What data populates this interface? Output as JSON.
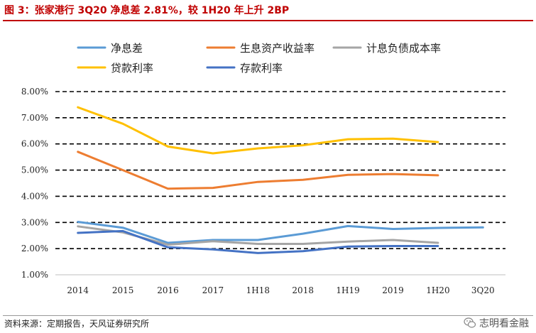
{
  "header": {
    "title": "图 3：张家港行 3Q20 净息差 2.81%，较 1H20 年上升 2BP"
  },
  "footer": {
    "source": "资料来源：定期报告，天风证券研究所",
    "watermark": "志明看金融"
  },
  "chart_data": {
    "type": "line",
    "title": "图 3：张家港行 3Q20 净息差 2.81%，较 1H20 年上升 2BP",
    "categories": [
      "2014",
      "2015",
      "2016",
      "2017",
      "1H18",
      "2018",
      "1H19",
      "2019",
      "1H20",
      "3Q20"
    ],
    "yticks": [
      "1.00%",
      "2.00%",
      "3.00%",
      "4.00%",
      "5.00%",
      "6.00%",
      "7.00%",
      "8.00%"
    ],
    "ylim": [
      1.0,
      8.0
    ],
    "grid": "horizontal dashed",
    "legend_position": "top",
    "series": [
      {
        "name": "净息差",
        "color": "#5b9bd5",
        "values": [
          3.02,
          2.8,
          2.22,
          2.33,
          2.33,
          2.57,
          2.86,
          2.75,
          2.79,
          2.81
        ]
      },
      {
        "name": "生息资产收益率",
        "color": "#ed7d31",
        "values": [
          5.7,
          5.0,
          4.29,
          4.32,
          4.55,
          4.63,
          4.82,
          4.85,
          4.8,
          null
        ]
      },
      {
        "name": "计息负债成本率",
        "color": "#a5a5a5",
        "values": [
          2.85,
          2.62,
          2.15,
          2.28,
          2.18,
          2.18,
          2.27,
          2.33,
          2.22,
          null
        ]
      },
      {
        "name": "贷款利率",
        "color": "#ffc000",
        "values": [
          7.4,
          6.77,
          5.9,
          5.64,
          5.83,
          5.95,
          6.18,
          6.2,
          6.07,
          null
        ]
      },
      {
        "name": "存款利率",
        "color": "#4472c4",
        "values": [
          2.6,
          2.67,
          2.05,
          1.97,
          1.83,
          1.9,
          2.08,
          2.1,
          2.1,
          null
        ]
      }
    ]
  }
}
